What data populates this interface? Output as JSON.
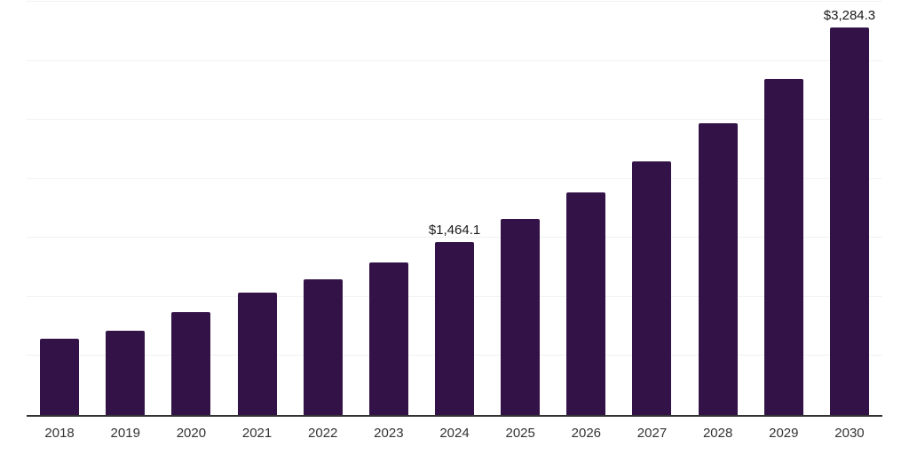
{
  "chart_data": {
    "type": "bar",
    "title": "",
    "xlabel": "",
    "ylabel": "",
    "categories": [
      "2018",
      "2019",
      "2020",
      "2021",
      "2022",
      "2023",
      "2024",
      "2025",
      "2026",
      "2027",
      "2028",
      "2029",
      "2030"
    ],
    "values": [
      647,
      710,
      871,
      1035,
      1151,
      1291,
      1464.1,
      1659,
      1884,
      2146,
      2469,
      2846,
      3284.3
    ],
    "data_labels": {
      "2024": "$1,464.1",
      "2030": "$3,284.3"
    },
    "ylim": [
      0,
      3500
    ],
    "ytick_step": 500,
    "grid": true,
    "legend": false,
    "bar_color": "#331347",
    "axis_line_color": "#333333",
    "gridline_color": "#f2f2f2",
    "data_label_color": "#1a1a1a",
    "tick_label_color": "#333333"
  }
}
